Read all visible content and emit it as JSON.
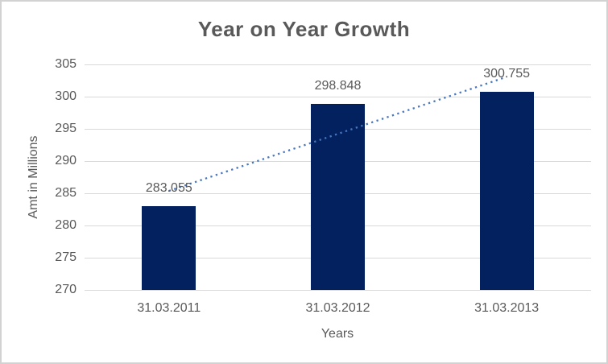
{
  "chart": {
    "background_color": "#FFFFFF",
    "border_color": "#D2D2D2",
    "text_color": "#595959"
  },
  "chart_data": {
    "type": "bar",
    "title": "Year on Year Growth",
    "xlabel": "Years",
    "ylabel": "Amt in Millions",
    "categories": [
      "31.03.2011",
      "31.03.2012",
      "31.03.2013"
    ],
    "values": [
      283.055,
      298.848,
      300.755
    ],
    "data_labels": [
      "283.055",
      "298.848",
      "300.755"
    ],
    "ylim": [
      270,
      305
    ],
    "yticks": [
      270,
      275,
      280,
      285,
      290,
      295,
      300,
      305
    ],
    "grid": true,
    "gridline_color": "#D9D9D9",
    "bar_color": "#02215E",
    "legend": "none",
    "trendline": {
      "type": "linear",
      "style": "dotted",
      "color": "#4776BE"
    }
  }
}
